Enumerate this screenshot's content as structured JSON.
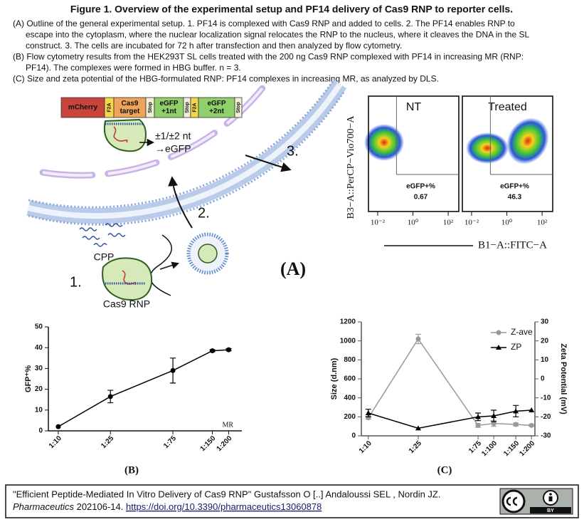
{
  "figure": {
    "title": "Figure 1. Overview of the experimental setup and PF14 delivery of Cas9 RNP to reporter cells.",
    "caption": [
      "(A) Outline of the general experimental setup. 1. PF14 is complexed with Cas9 RNP and added to cells. 2. The PF14 enables RNP to",
      "escape into the cytoplasm, where the nuclear localization signal relocates the RNP to the nucleus, where it cleaves the DNA in the SL",
      "construct. 3. The cells are incubated for 72 h after transfection and then analyzed by flow cytometry.",
      "(B) Flow cytometry results from the HEK293T SL cells treated with the 200 ng Cas9 RNP complexed with PF14 in increasing MR (RNP:",
      "PF14). The complexes were formed in HBG buffer. n = 3.",
      "(C) Size and zeta potential of the HBG-formulated RNP: PF14 complexes in increasing MR, as analyzed by DLS."
    ]
  },
  "diagram": {
    "construct": [
      [
        "mCherry"
      ],
      [
        "F2A"
      ],
      [
        "Cas9",
        "target"
      ],
      [
        "Stop"
      ],
      [
        "eGFP",
        "+1nt"
      ],
      [
        "Stop"
      ],
      [
        "F2A"
      ],
      [
        "eGFP",
        "+2nt"
      ],
      [
        "Stop"
      ]
    ],
    "frameshift": [
      "±1/±2 nt",
      "→eGFP"
    ],
    "steps": [
      "1.",
      "2.",
      "3."
    ],
    "cpp": "CPP",
    "rnp": "Cas9 RNP",
    "panel_label": "(A)"
  },
  "flow_cytometry": {
    "ylabel": "B3−A::PerCP−Vio700−A",
    "xlabel": "B1−A::FITC−A",
    "xscale": "log",
    "xlim": [
      0.003,
      400
    ],
    "xticks": [
      {
        "value": 0.01,
        "label": "10⁻²"
      },
      {
        "value": 1,
        "label": "10⁰"
      },
      {
        "value": 100,
        "label": "10²"
      }
    ],
    "panels": [
      {
        "title": "NT",
        "gate_label": "eGFP+%",
        "value": 0.67
      },
      {
        "title": "Treated",
        "gate_label": "eGFP+%",
        "value": 46.3
      }
    ]
  },
  "chart_data": [
    {
      "type": "line",
      "xscale": "log",
      "x": [
        10,
        25,
        75,
        150,
        200
      ],
      "xlim": [
        8.4,
        252
      ],
      "xticks": [
        {
          "value": 10,
          "label": "1:10"
        },
        {
          "value": 25,
          "label": "1:25"
        },
        {
          "value": 75,
          "label": "1:75"
        },
        {
          "value": 150,
          "label": "1:150"
        },
        {
          "value": 200,
          "label": "1:200"
        }
      ],
      "values": [
        2,
        16.5,
        29,
        38.5,
        39
      ],
      "errors": [
        0,
        3,
        6,
        0.5,
        0.5
      ],
      "color": "#000000",
      "ylim": [
        0,
        50
      ],
      "yticks": [
        0,
        10,
        20,
        30,
        40,
        50
      ],
      "ylabel": "GFP⁺%",
      "xlabel": "MR",
      "panel_label": "(B)"
    },
    {
      "type": "line",
      "xscale": "log",
      "x": [
        10,
        25,
        75,
        100,
        150,
        200
      ],
      "xlim": [
        8.8,
        213
      ],
      "xticks": [
        {
          "value": 10,
          "label": "1:10"
        },
        {
          "value": 25,
          "label": "1:25"
        },
        {
          "value": 75,
          "label": "1:75"
        },
        {
          "value": 100,
          "label": "1:100"
        },
        {
          "value": 150,
          "label": "1:150"
        },
        {
          "value": 200,
          "label": "1:200"
        }
      ],
      "ylim": [
        0,
        1200
      ],
      "yticks": [
        0,
        200,
        400,
        600,
        800,
        1000,
        1200
      ],
      "y2lim": [
        -30,
        30
      ],
      "y2ticks": [
        -30,
        -20,
        -10,
        0,
        10,
        20,
        30
      ],
      "ylabel": "Size (d.nm)",
      "y2label": "Zeta Potential (mV)",
      "series": [
        {
          "name": "Z-ave",
          "color": "#999999",
          "marker": "circle",
          "values": [
            190,
            1020,
            110,
            130,
            120,
            110
          ],
          "errors": [
            15,
            50,
            20,
            30,
            15,
            10
          ]
        },
        {
          "name": "ZP",
          "color": "#000000",
          "marker": "triangle",
          "axis": "y2",
          "values": [
            -18,
            -26,
            -20,
            -19.5,
            -17,
            -16.5
          ],
          "errors": [
            2,
            0,
            2,
            3,
            3,
            0
          ]
        }
      ],
      "legend": "upper right",
      "panel_label": "(C)"
    }
  ],
  "citation": {
    "line1": "\"Efficient Peptide-Mediated In Vitro Delivery of Cas9 RNP\" Gustafsson O [..] Andaloussi SEL , Nordin JZ.",
    "journal": "Pharmaceutics",
    "date": " 202106-14. ",
    "doi": "https://doi.org/10.3390/pharmaceutics13060878",
    "license": "BY"
  }
}
